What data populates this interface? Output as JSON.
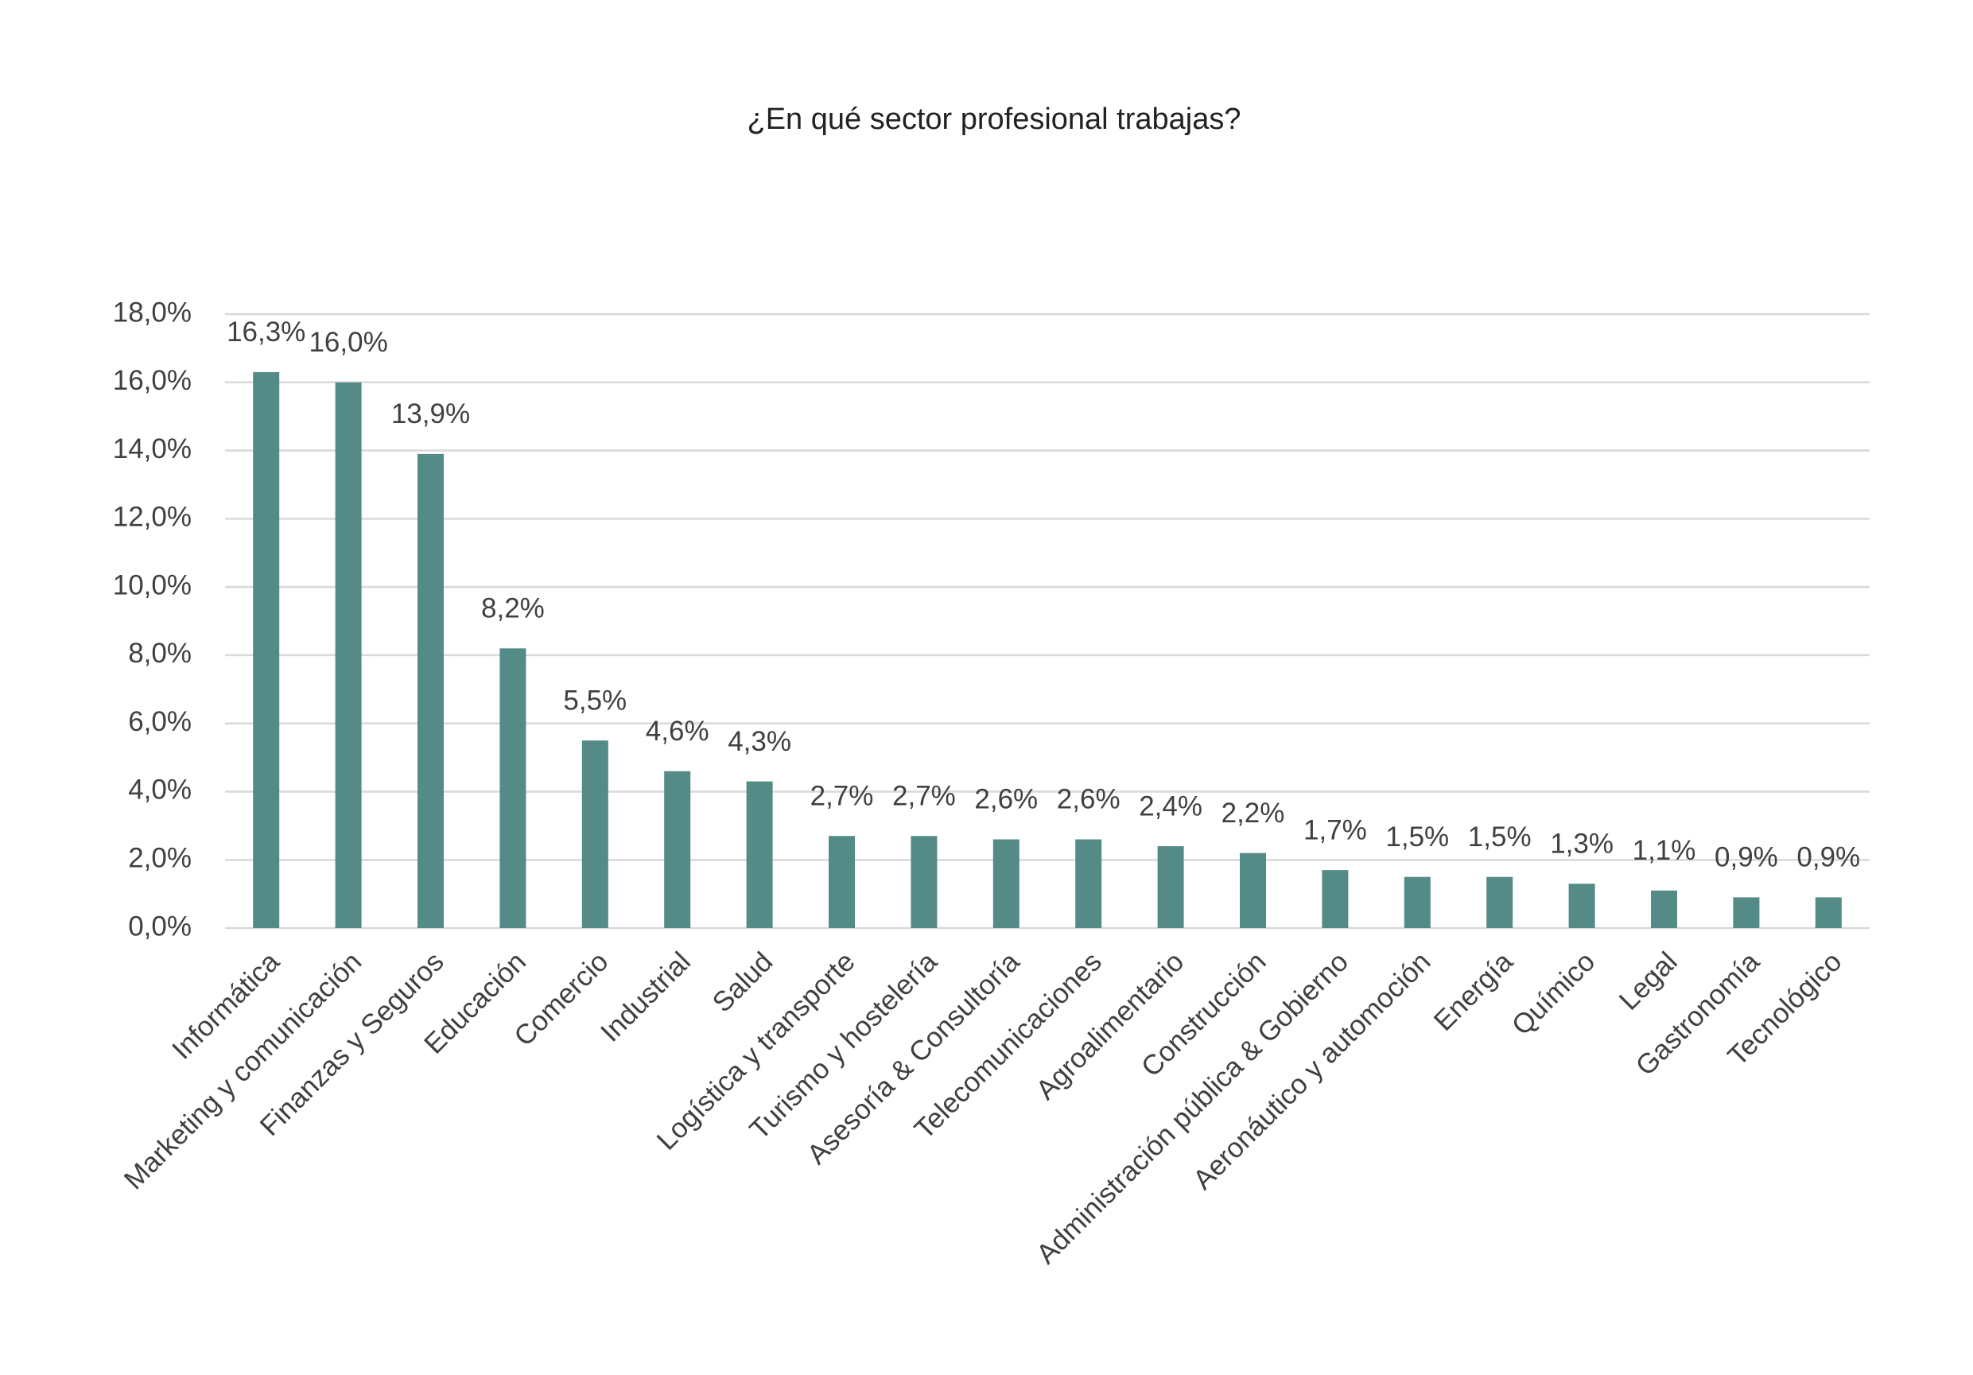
{
  "chart_data": {
    "type": "bar",
    "title": "¿En qué sector profesional trabajas?",
    "categories": [
      "Informática",
      "Marketing y comunicación",
      "Finanzas y Seguros",
      "Educación",
      "Comercio",
      "Industrial",
      "Salud",
      "Logística y transporte",
      "Turismo y hostelería",
      "Asesoría & Consultoría",
      "Telecomunicaciones",
      "Agroalimentario",
      "Construcción",
      "Administración pública & Gobierno",
      "Aeronáutico y automoción",
      "Energía",
      "Químico",
      "Legal",
      "Gastronomía",
      "Tecnológico"
    ],
    "values": [
      16.3,
      16.0,
      13.9,
      8.2,
      5.5,
      4.6,
      4.3,
      2.7,
      2.7,
      2.6,
      2.6,
      2.4,
      2.2,
      1.7,
      1.5,
      1.5,
      1.3,
      1.1,
      0.9,
      0.9
    ],
    "value_labels": [
      "16,3%",
      "16,0%",
      "13,9%",
      "8,2%",
      "5,5%",
      "4,6%",
      "4,3%",
      "2,7%",
      "2,7%",
      "2,6%",
      "2,6%",
      "2,4%",
      "2,2%",
      "1,7%",
      "1,5%",
      "1,5%",
      "1,3%",
      "1,1%",
      "0,9%",
      "0,9%"
    ],
    "color": "#548b87",
    "ylim": [
      0,
      18
    ],
    "yticks": [
      {
        "value": 0,
        "label": "0,0%"
      },
      {
        "value": 2,
        "label": "2,0%"
      },
      {
        "value": 4,
        "label": "4,0%"
      },
      {
        "value": 6,
        "label": "6,0%"
      },
      {
        "value": 8,
        "label": "8,0%"
      },
      {
        "value": 10,
        "label": "10,0%"
      },
      {
        "value": 12,
        "label": "12,0%"
      },
      {
        "value": 14,
        "label": "14,0%"
      },
      {
        "value": 16,
        "label": "16,0%"
      },
      {
        "value": 18,
        "label": "18,0%"
      }
    ],
    "grid": true
  }
}
